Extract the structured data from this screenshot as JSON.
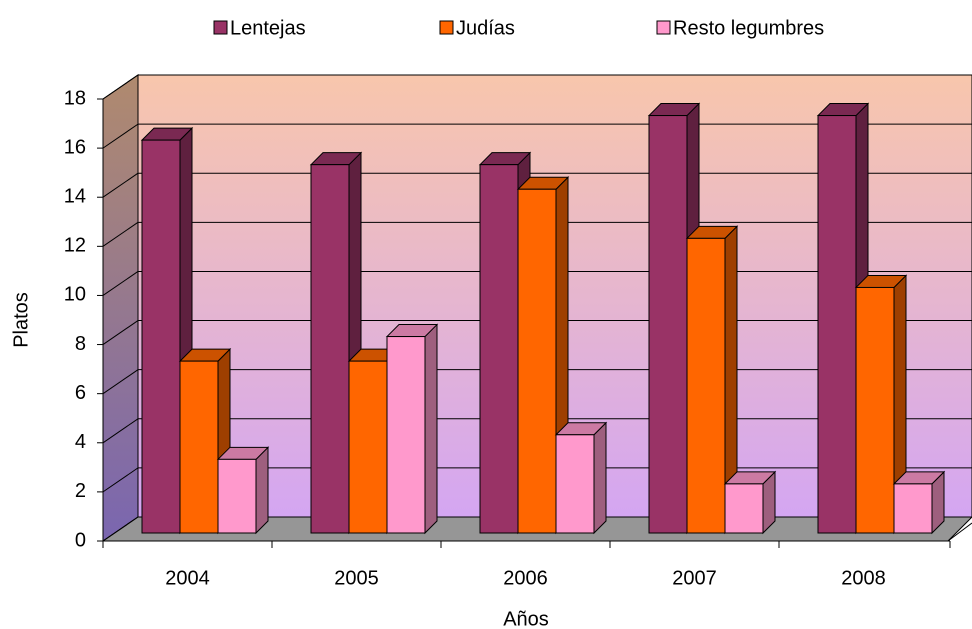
{
  "chart_data": {
    "type": "bar3d",
    "categories": [
      "2004",
      "2005",
      "2006",
      "2007",
      "2008"
    ],
    "series": [
      {
        "name": "Lentejas",
        "color": "#993366",
        "values": [
          16,
          15,
          15,
          17,
          17
        ]
      },
      {
        "name": "Judías",
        "color": "#ff6600",
        "values": [
          7,
          7,
          14,
          12,
          10
        ]
      },
      {
        "name": "Resto legumbres",
        "color": "#ff99cc",
        "values": [
          3,
          8,
          4,
          2,
          2
        ]
      }
    ],
    "ylim": [
      0,
      18
    ],
    "yticks": [
      0,
      2,
      4,
      6,
      8,
      10,
      12,
      14,
      16,
      18
    ],
    "xlabel": "Años",
    "ylabel": "Platos",
    "grid": true,
    "legend": "top"
  }
}
